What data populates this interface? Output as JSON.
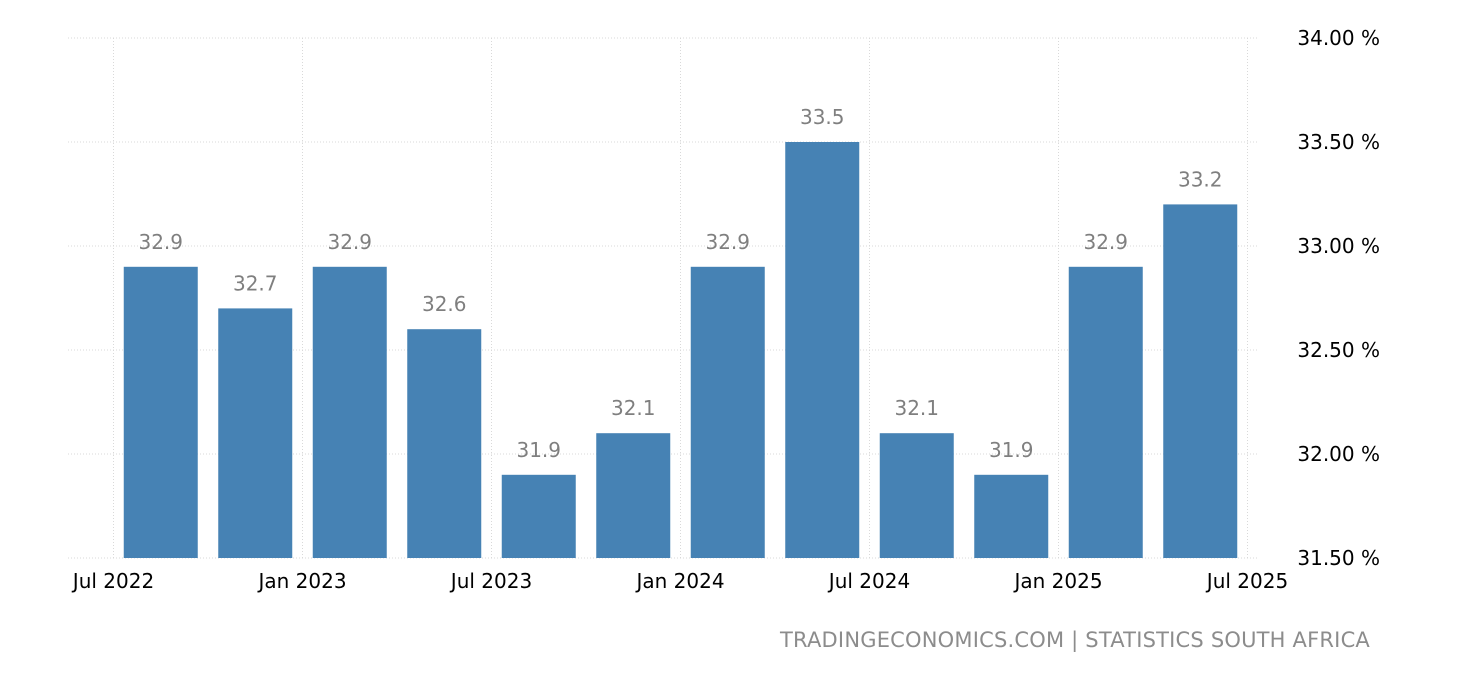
{
  "chart_data": {
    "type": "bar",
    "categories": [
      "2022-Q3",
      "2022-Q4",
      "2023-Q1",
      "2023-Q2",
      "2023-Q3",
      "2023-Q4",
      "2024-Q1",
      "2024-Q2",
      "2024-Q3",
      "2024-Q4",
      "2025-Q1",
      "2025-Q2"
    ],
    "values": [
      32.9,
      32.7,
      32.9,
      32.6,
      31.9,
      32.1,
      32.9,
      33.5,
      32.1,
      31.9,
      32.9,
      33.2
    ],
    "data_labels": [
      "32.9",
      "32.7",
      "32.9",
      "32.6",
      "31.9",
      "32.1",
      "32.9",
      "33.5",
      "32.1",
      "31.9",
      "32.9",
      "33.2"
    ],
    "ylim": [
      31.5,
      34.0
    ],
    "y_ticks": [
      31.5,
      32.0,
      32.5,
      33.0,
      33.5,
      34.0
    ],
    "y_tick_labels": [
      "31.50 %",
      "32.00 %",
      "32.50 %",
      "33.00 %",
      "33.50 %",
      "34.00 %"
    ],
    "y_axis_side": "right",
    "x_tick_labels": [
      "Jul 2022",
      "Jan 2023",
      "Jul 2023",
      "Jan 2024",
      "Jul 2024",
      "Jan 2025",
      "Jul 2025"
    ],
    "x_tick_positions": [
      -0.5,
      1.5,
      3.5,
      5.5,
      7.5,
      9.5,
      11.5
    ],
    "bar_color": "#4682b4",
    "label_color": "#7f7f7f",
    "grid": true,
    "title": "",
    "xlabel": "",
    "ylabel": ""
  },
  "source_text": "TRADINGECONOMICS.COM | STATISTICS SOUTH AFRICA"
}
